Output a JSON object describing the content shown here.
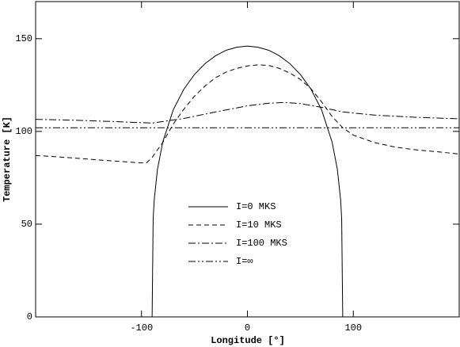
{
  "chart_data": {
    "type": "line",
    "xlabel": "Longitude [°]",
    "ylabel": "Temperature [K]",
    "xlim": [
      -200,
      200
    ],
    "ylim": [
      0,
      170
    ],
    "xticks": [
      -100,
      0,
      100
    ],
    "yticks": [
      0,
      50,
      100,
      150
    ],
    "legend": "center",
    "series": [
      {
        "name": "I=0 MKS",
        "color": "#000000",
        "style": "solid",
        "x": [
          -200,
          -90,
          -90,
          -89,
          -88,
          -85,
          -80,
          -70,
          -60,
          -50,
          -40,
          -30,
          -20,
          -10,
          0,
          10,
          20,
          30,
          40,
          50,
          60,
          70,
          80,
          85,
          88,
          89,
          90,
          90,
          200
        ],
        "values": [
          0,
          0,
          0,
          53.1,
          63.1,
          79.3,
          94.2,
          111.7,
          122.8,
          130.7,
          136.6,
          140.8,
          143.8,
          145.4,
          146,
          145.4,
          143.8,
          140.8,
          136.6,
          130.7,
          122.8,
          111.7,
          94.2,
          79.3,
          63.1,
          53.1,
          0,
          0,
          0
        ]
      },
      {
        "name": "I=10 MKS",
        "color": "#000000",
        "style": "dashed",
        "x": [
          -200,
          -180,
          -160,
          -140,
          -120,
          -100,
          -95,
          -90,
          -80,
          -70,
          -60,
          -50,
          -40,
          -30,
          -20,
          -10,
          0,
          10,
          20,
          30,
          40,
          50,
          60,
          70,
          80,
          90,
          100,
          120,
          140,
          160,
          180,
          200
        ],
        "values": [
          87,
          86.3,
          85.5,
          84.6,
          83.8,
          83,
          83.2,
          86,
          94,
          104,
          112,
          119,
          124.5,
          129,
          132,
          134,
          135.3,
          135.9,
          135.6,
          134,
          131.5,
          128,
          123,
          116,
          108,
          102,
          98,
          94,
          91.5,
          90,
          89,
          87.8
        ]
      },
      {
        "name": "I=100 MKS",
        "color": "#000000",
        "style": "dashdot",
        "x": [
          -200,
          -160,
          -120,
          -90,
          -60,
          -30,
          0,
          20,
          35,
          50,
          70,
          90,
          120,
          160,
          200
        ],
        "values": [
          106.5,
          106,
          105.2,
          104.5,
          107,
          110.5,
          113.8,
          115.2,
          115.6,
          115,
          113,
          110.5,
          108.8,
          107.6,
          106.8
        ]
      },
      {
        "name": "I=∞",
        "color": "#000000",
        "style": "dashdotdot",
        "x": [
          -200,
          200
        ],
        "values": [
          102,
          102
        ]
      }
    ]
  }
}
